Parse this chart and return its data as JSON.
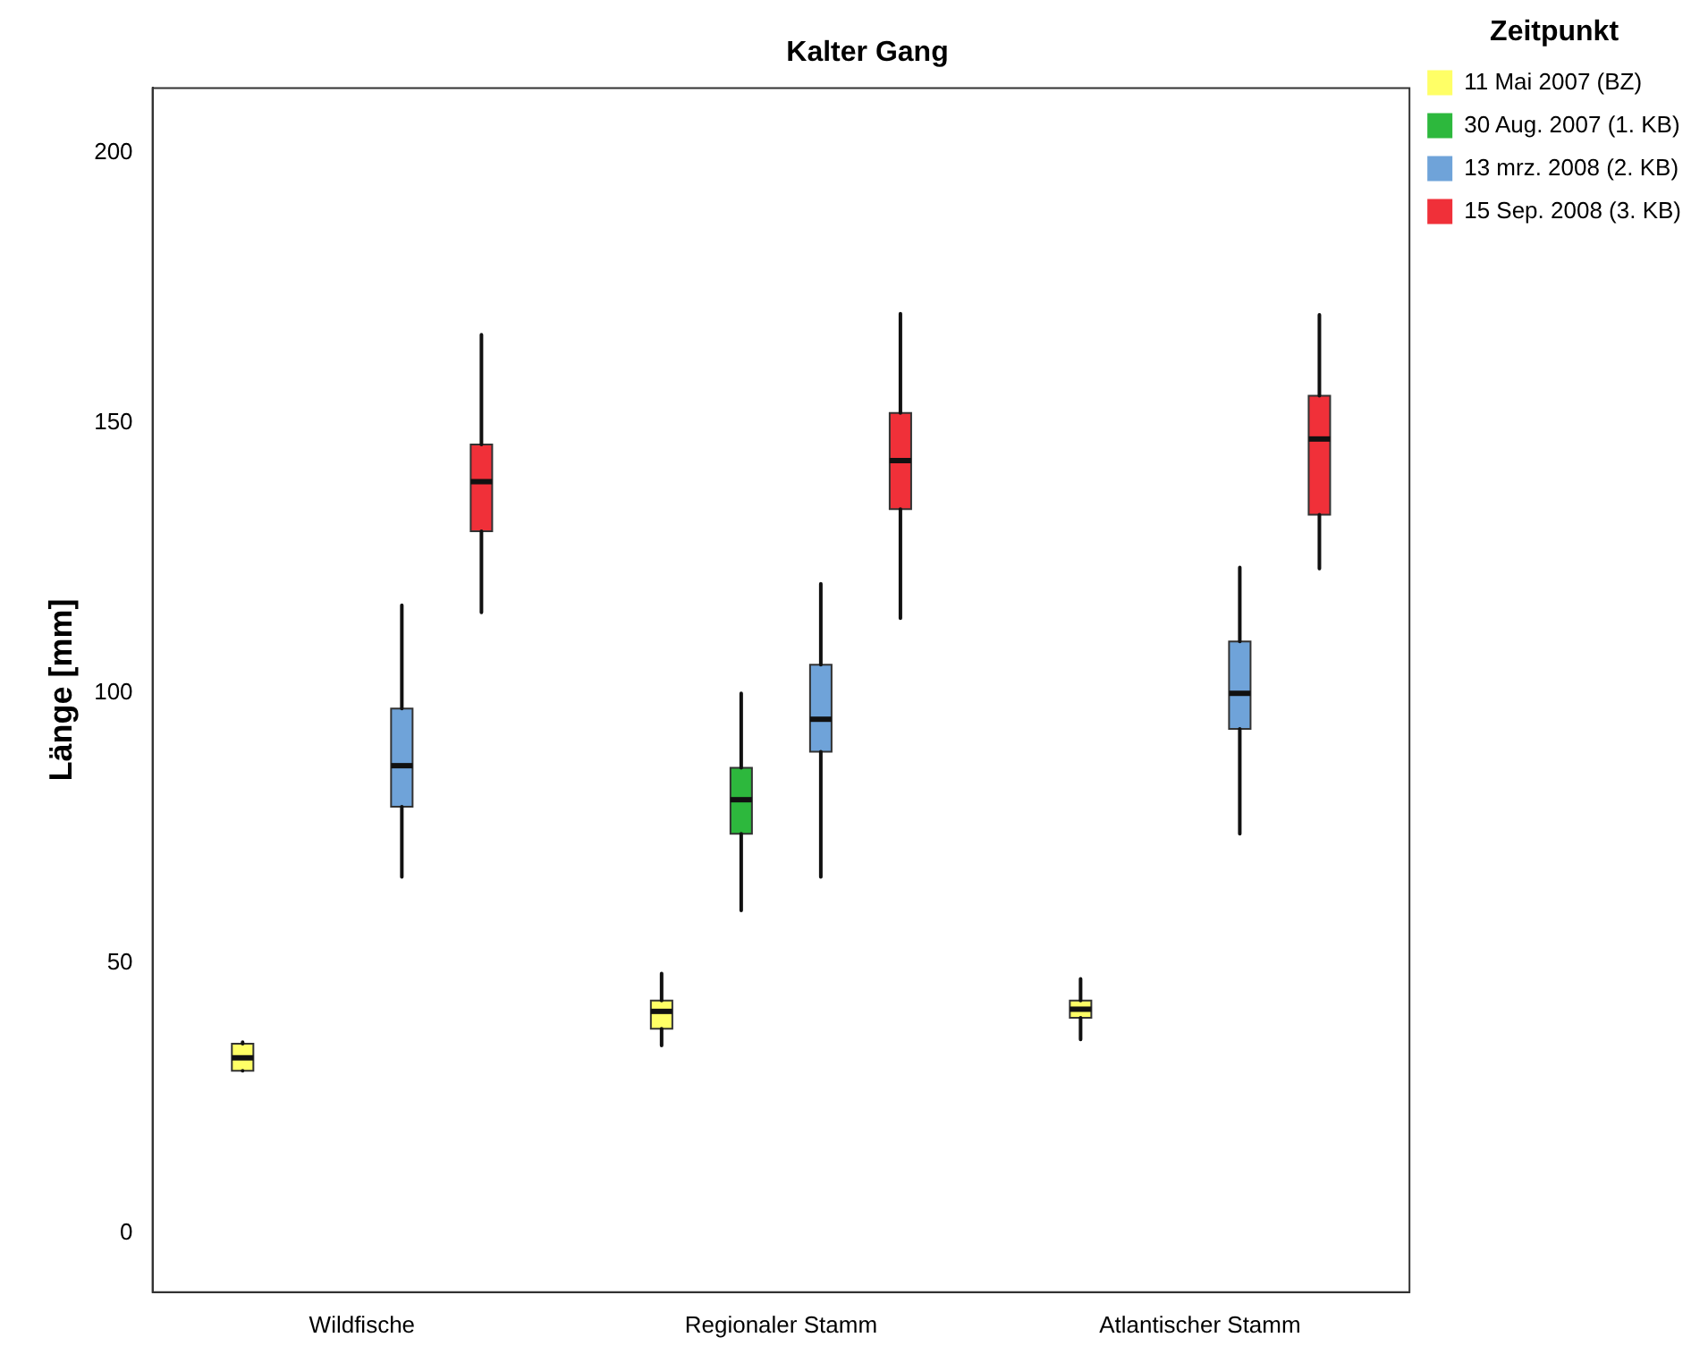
{
  "chart_data": {
    "type": "box",
    "title": "Kalter Gang",
    "ylabel": "Länge [mm]",
    "legend_title": "Zeitpunkt",
    "legend": "top right",
    "categories": [
      "Wildfische",
      "Regionaler Stamm",
      "Atlantischer Stamm"
    ],
    "ylim": [
      -11,
      212
    ],
    "yticks": [
      0,
      50,
      100,
      150,
      200
    ],
    "series": [
      {
        "name": "11 Mai 2007 (BZ)",
        "color": "#ffff66",
        "boxes": [
          {
            "low": 30,
            "q1": 30,
            "median": 32.4,
            "q3": 35,
            "high": 35.3
          },
          {
            "low": 34.7,
            "q1": 37.8,
            "median": 41,
            "q3": 43,
            "high": 48
          },
          {
            "low": 35.8,
            "q1": 39.8,
            "median": 41.4,
            "q3": 43,
            "high": 47
          }
        ]
      },
      {
        "name": "30 Aug. 2007 (1. KB)",
        "color": "#2db83d",
        "boxes": [
          null,
          {
            "low": 59.7,
            "q1": 73.9,
            "median": 80.2,
            "q3": 86.1,
            "high": 99.9
          },
          null
        ]
      },
      {
        "name": "13 mrz. 2008 (2. KB)",
        "color": "#6fa3d9",
        "boxes": [
          {
            "low": 65.9,
            "q1": 78.9,
            "median": 86.5,
            "q3": 97.1,
            "high": 116.2
          },
          {
            "low": 65.9,
            "q1": 89.1,
            "median": 95.1,
            "q3": 105.2,
            "high": 120.2
          },
          {
            "low": 73.9,
            "q1": 93.3,
            "median": 99.9,
            "q3": 109.5,
            "high": 123.2
          }
        ]
      },
      {
        "name": "15 Sep. 2008 (3. KB)",
        "color": "#f03039",
        "boxes": [
          {
            "low": 114.9,
            "q1": 129.9,
            "median": 139.1,
            "q3": 146,
            "high": 166.3
          },
          {
            "low": 113.8,
            "q1": 134,
            "median": 143,
            "q3": 151.8,
            "high": 170.2
          },
          {
            "low": 123,
            "q1": 133,
            "median": 147,
            "q3": 155,
            "high": 170
          }
        ]
      }
    ]
  }
}
